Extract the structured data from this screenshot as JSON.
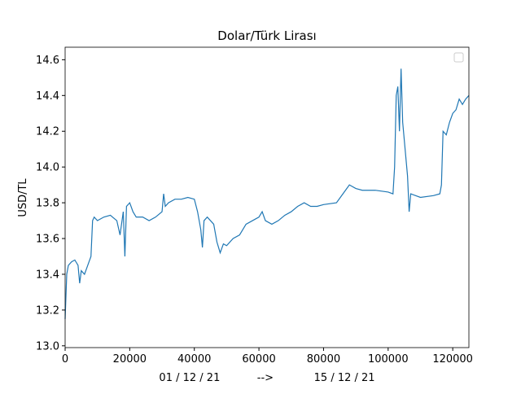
{
  "chart_data": {
    "type": "line",
    "title": "Dolar/Türk Lirası",
    "ylabel": "USD/TL",
    "xlabel": "01 / 12 / 21           -->            15 / 12 / 21",
    "x": [
      0,
      500,
      1000,
      2000,
      3000,
      4000,
      4500,
      5000,
      6000,
      7000,
      8000,
      8500,
      9000,
      10000,
      12000,
      14000,
      16000,
      17000,
      18000,
      18500,
      19000,
      20000,
      21000,
      22000,
      24000,
      26000,
      28000,
      30000,
      30500,
      31000,
      32000,
      34000,
      36000,
      38000,
      40000,
      41000,
      42000,
      42500,
      43000,
      44000,
      46000,
      47000,
      48000,
      49000,
      50000,
      52000,
      54000,
      55000,
      56000,
      58000,
      60000,
      61000,
      62000,
      64000,
      66000,
      68000,
      70000,
      72000,
      74000,
      76000,
      78000,
      80000,
      84000,
      86000,
      88000,
      90000,
      92000,
      96000,
      100000,
      101500,
      102000,
      102500,
      103000,
      103500,
      104000,
      104500,
      105000,
      106000,
      106500,
      107000,
      110000,
      114000,
      116000,
      116500,
      117000,
      118000,
      119000,
      120000,
      121000,
      122000,
      123000,
      124000,
      125000
    ],
    "series": [
      {
        "color": "#1f77b4",
        "values": [
          13.15,
          13.4,
          13.45,
          13.47,
          13.48,
          13.45,
          13.35,
          13.42,
          13.4,
          13.45,
          13.5,
          13.7,
          13.72,
          13.7,
          13.72,
          13.73,
          13.7,
          13.62,
          13.75,
          13.5,
          13.78,
          13.8,
          13.75,
          13.72,
          13.72,
          13.7,
          13.72,
          13.75,
          13.85,
          13.78,
          13.8,
          13.82,
          13.82,
          13.83,
          13.82,
          13.75,
          13.65,
          13.55,
          13.7,
          13.72,
          13.68,
          13.58,
          13.52,
          13.57,
          13.56,
          13.6,
          13.62,
          13.65,
          13.68,
          13.7,
          13.72,
          13.75,
          13.7,
          13.68,
          13.7,
          13.73,
          13.75,
          13.78,
          13.8,
          13.78,
          13.78,
          13.79,
          13.8,
          13.85,
          13.9,
          13.88,
          13.87,
          13.87,
          13.86,
          13.85,
          14.0,
          14.4,
          14.45,
          14.2,
          14.55,
          14.25,
          14.15,
          13.95,
          13.75,
          13.85,
          13.83,
          13.84,
          13.85,
          13.9,
          14.2,
          14.18,
          14.25,
          14.3,
          14.32,
          14.38,
          14.35,
          14.38,
          14.4
        ]
      }
    ],
    "xlim": [
      0,
      125000
    ],
    "xticks": [
      0,
      20000,
      40000,
      60000,
      80000,
      100000,
      120000
    ],
    "ylim": [
      12.99,
      14.67
    ],
    "yticks": [
      {
        "value": 13.0,
        "label": "13.0"
      },
      13.2,
      13.4,
      13.6,
      13.8,
      {
        "value": 14.0,
        "label": "14.0"
      },
      14.2,
      14.4,
      14.6
    ]
  }
}
